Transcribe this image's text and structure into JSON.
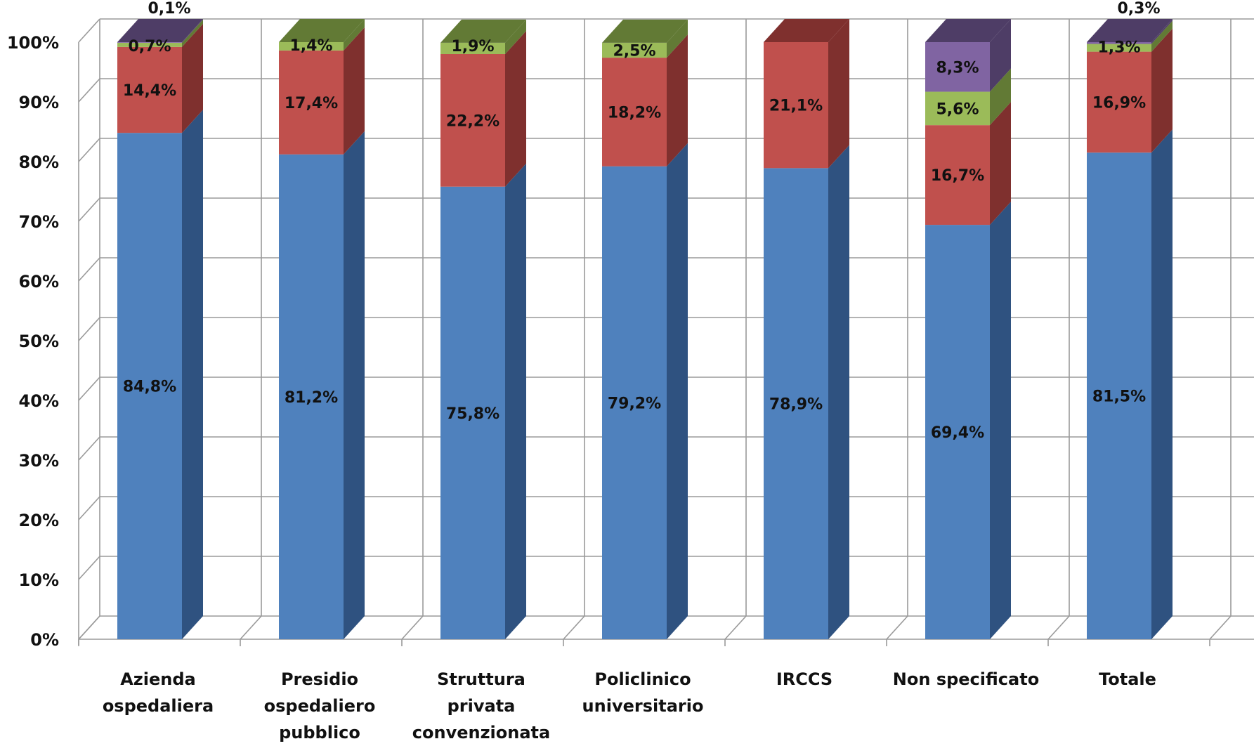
{
  "chart_data": {
    "type": "bar",
    "stacked": true,
    "percent_stacked": true,
    "three_d": true,
    "title": "",
    "xlabel": "",
    "ylabel": "",
    "ylim": [
      0,
      100
    ],
    "yticks": [
      "0%",
      "10%",
      "20%",
      "30%",
      "40%",
      "50%",
      "60%",
      "70%",
      "80%",
      "90%",
      "100%"
    ],
    "grid": true,
    "legend": "none",
    "categories": [
      [
        "Azienda",
        "ospedaliera"
      ],
      [
        "Presidio",
        "ospedaliero",
        "pubblico"
      ],
      [
        "Struttura",
        "privata",
        "convenzionata"
      ],
      [
        "Policlinico",
        "universitario"
      ],
      [
        "IRCCS"
      ],
      [
        "Non specificato"
      ],
      [
        "Totale"
      ]
    ],
    "series": [
      {
        "color": "#4f81bd",
        "side_color": "#2f5280",
        "values": [
          84.8,
          81.2,
          75.8,
          79.2,
          78.9,
          69.4,
          81.5
        ],
        "labels": [
          "84,8%",
          "81,2%",
          "75,8%",
          "79,2%",
          "78,9%",
          "69,4%",
          "81,5%"
        ]
      },
      {
        "color": "#c0504d",
        "side_color": "#7f302e",
        "values": [
          14.4,
          17.4,
          22.2,
          18.2,
          21.1,
          16.7,
          16.9
        ],
        "labels": [
          "14,4%",
          "17,4%",
          "22,2%",
          "18,2%",
          "21,1%",
          "16,7%",
          "16,9%"
        ]
      },
      {
        "color": "#9bbb59",
        "side_color": "#627a35",
        "values": [
          0.7,
          1.4,
          1.9,
          2.5,
          0,
          5.6,
          1.3
        ],
        "labels": [
          "0,7%",
          "1,4%",
          "1,9%",
          "2,5%",
          "",
          "5,6%",
          "1,3%"
        ]
      },
      {
        "color": "#8064a2",
        "side_color": "#4e3d66",
        "values": [
          0.1,
          0,
          0,
          0,
          0,
          8.3,
          0.3
        ],
        "labels": [
          "0,1%",
          "",
          "",
          "",
          "",
          "8,3%",
          "0,3%"
        ]
      }
    ]
  }
}
